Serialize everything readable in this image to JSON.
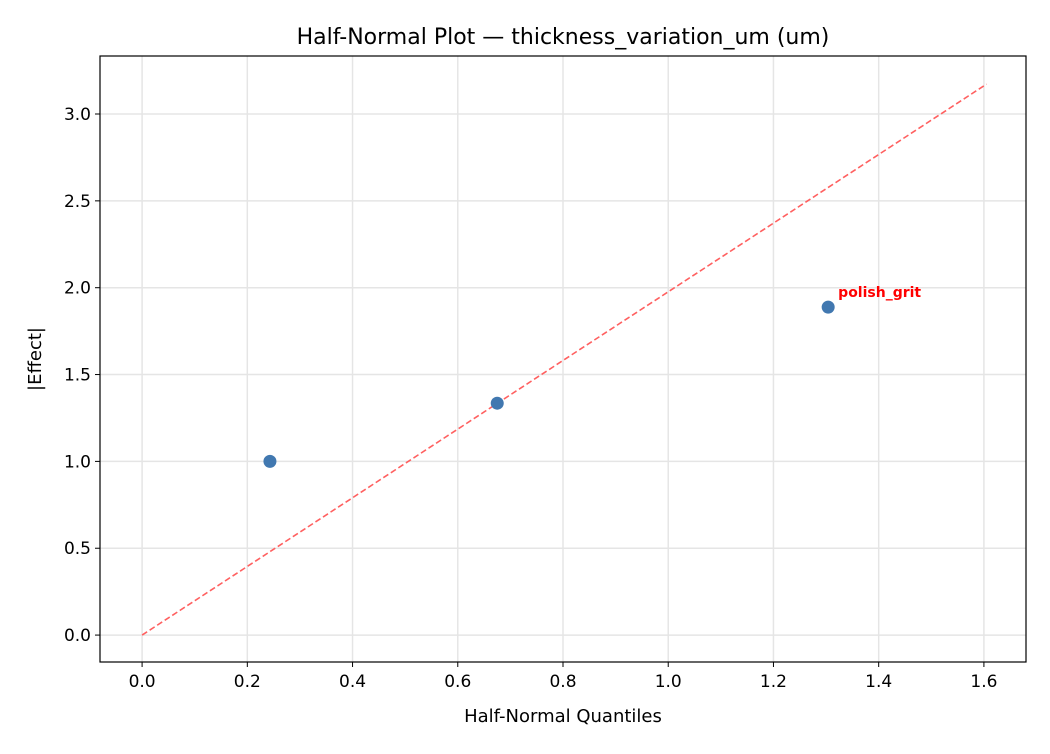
{
  "chart_data": {
    "type": "scatter",
    "title": "Half-Normal Plot — thickness_variation_um (um)",
    "xlabel": "Half-Normal Quantiles",
    "ylabel": "|Effect|",
    "xlim": [
      -0.08,
      1.68
    ],
    "ylim": [
      -0.155,
      3.334
    ],
    "xticks": [
      0.0,
      0.2,
      0.4,
      0.6,
      0.8,
      1.0,
      1.2,
      1.4,
      1.6
    ],
    "xtick_labels": [
      "0.0",
      "0.2",
      "0.4",
      "0.6",
      "0.8",
      "1.0",
      "1.2",
      "1.4",
      "1.6"
    ],
    "yticks": [
      0.0,
      0.5,
      1.0,
      1.5,
      2.0,
      2.5,
      3.0
    ],
    "ytick_labels": [
      "0.0",
      "0.5",
      "1.0",
      "1.5",
      "2.0",
      "2.5",
      "3.0"
    ],
    "grid": true,
    "points": [
      {
        "x": 0.243,
        "y": 1.0,
        "label": ""
      },
      {
        "x": 0.675,
        "y": 1.335,
        "label": ""
      },
      {
        "x": 1.304,
        "y": 1.888,
        "label": "polish_grit"
      }
    ],
    "reference_line": {
      "x": [
        0.0,
        1.605
      ],
      "y": [
        0.0,
        3.172
      ],
      "style": "dashed"
    },
    "colors": {
      "points": "#4178b0",
      "reference_line": "#ff6060",
      "annotation": "#ff0000",
      "grid": "#e5e5e5"
    }
  }
}
